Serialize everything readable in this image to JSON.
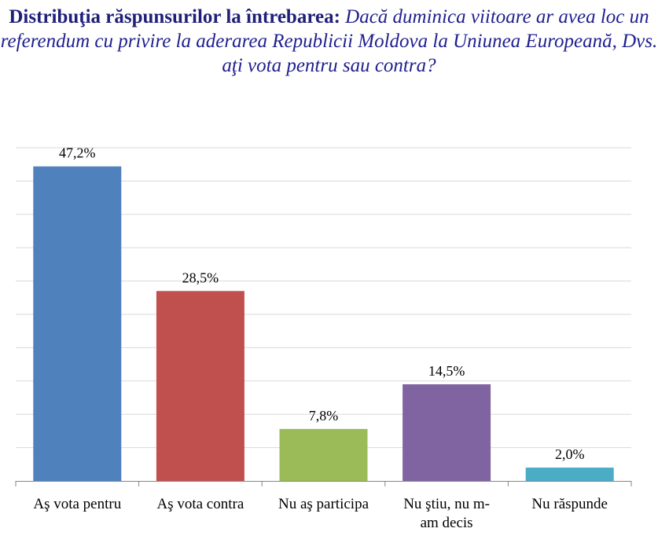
{
  "title": {
    "bold": "Distribuţia răspunsurilor la întrebarea:",
    "italic": "Dacă duminica viitoare ar avea loc un referendum cu privire la aderarea Republicii Moldova la Uniunea Europeană, Dvs. aţi vota pentru sau contra?"
  },
  "chart_data": {
    "type": "bar",
    "categories": [
      "Aş vota pentru",
      "Aş vota contra",
      "Nu aş participa",
      "Nu ştiu, nu m-am decis",
      "Nu răspunde"
    ],
    "category_lines": [
      [
        "Aş vota pentru"
      ],
      [
        "Aş vota contra"
      ],
      [
        "Nu aş participa"
      ],
      [
        "Nu ştiu, nu m-",
        "am decis"
      ],
      [
        "Nu răspunde"
      ]
    ],
    "values": [
      47.2,
      28.5,
      7.8,
      14.5,
      2.0
    ],
    "data_labels": [
      "47,2%",
      "28,5%",
      "7,8%",
      "14,5%",
      "2,0%"
    ],
    "colors": [
      "#4f81bd",
      "#c0504d",
      "#9bbb59",
      "#8064a2",
      "#4bacc6"
    ],
    "ylim": [
      0,
      50
    ],
    "grid": true,
    "legend": "none"
  }
}
